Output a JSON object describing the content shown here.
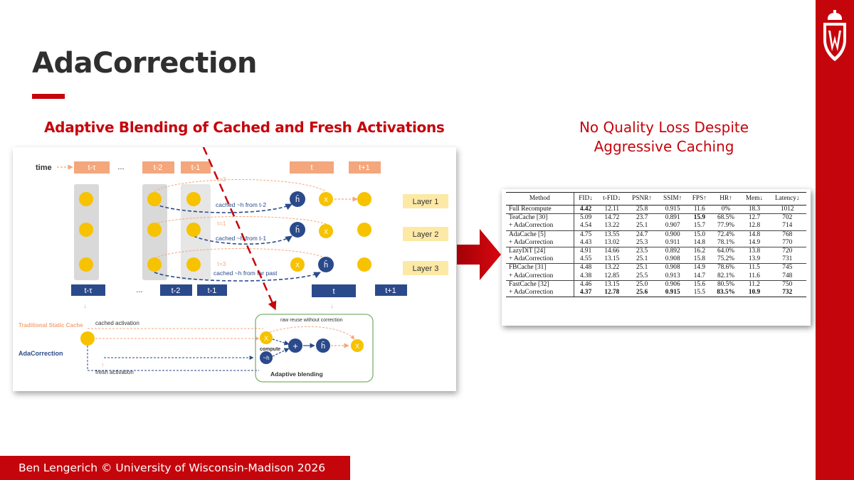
{
  "slide": {
    "title": "AdaCorrection",
    "subtitle": "Adaptive Blending of Cached and Fresh Activations",
    "tagline_line1": "No Quality Loss Despite",
    "tagline_line2": "Aggressive Caching",
    "footer": "Ben Lengerich © University of Wisconsin-Madison 2026"
  },
  "colors": {
    "brand_red": "#c5050c",
    "orange": "#f4a67c",
    "yellow": "#f7c200",
    "navy": "#2b4a8b"
  },
  "diagram": {
    "time_label": "time",
    "top_steps": [
      "t-τ",
      "...",
      "t-2",
      "t-1",
      "t",
      "t+1"
    ],
    "bottom_steps": [
      "t-τ",
      "...",
      "t-2",
      "t-1",
      "t",
      "t+1"
    ],
    "layers": [
      "Layer 1",
      "Layer 2",
      "Layer 3"
    ],
    "tau_labels": [
      "τ=2",
      "τ=1",
      "τ=3"
    ],
    "cache_labels": [
      "cached ~h from t-2",
      "cached ~h from t-1",
      "cached ~h from far past"
    ],
    "h_symbol": "ĥ",
    "x_symbol": "X",
    "traditional_label": "Traditional Static Cache",
    "adacorrection_label": "AdaCorrection",
    "cached_activation": "cached activation",
    "fresh_activation": "fresh activation",
    "raw_reuse": "raw reuse without correction",
    "compute": "compute",
    "compute_h": "~h",
    "plus": "+",
    "adaptive_blending": "Adaptive blending"
  },
  "table": {
    "headers": [
      "Method",
      "FID↓",
      "t-FID↓",
      "PSNR↑",
      "SSIM↑",
      "FPS↑",
      "HR↑",
      "Mem↓",
      "Latency↓"
    ],
    "rows": [
      [
        "Full Recompute",
        "4.42",
        "12.11",
        "25.8",
        "0.915",
        "11.6",
        "0%",
        "18.3",
        "1012"
      ],
      [
        "TeaCache [30]",
        "5.09",
        "14.72",
        "23.7",
        "0.891",
        "15.9",
        "68.5%",
        "12.7",
        "702"
      ],
      [
        "+ AdaCorrection",
        "4.54",
        "13.22",
        "25.1",
        "0.907",
        "15.7",
        "77.9%",
        "12.8",
        "714"
      ],
      [
        "AdaCache [5]",
        "4.75",
        "13.55",
        "24.7",
        "0.900",
        "15.0",
        "72.4%",
        "14.8",
        "768"
      ],
      [
        "+ AdaCorrection",
        "4.43",
        "13.02",
        "25.3",
        "0.911",
        "14.8",
        "78.1%",
        "14.9",
        "770"
      ],
      [
        "LazyDiT [24]",
        "4.91",
        "14.66",
        "23.5",
        "0.892",
        "16.2",
        "64.0%",
        "13.8",
        "720"
      ],
      [
        "+ AdaCorrection",
        "4.55",
        "13.15",
        "25.1",
        "0.908",
        "15.8",
        "75.2%",
        "13.9",
        "731"
      ],
      [
        "FBCache [31]",
        "4.48",
        "13.22",
        "25.1",
        "0.908",
        "14.9",
        "78.6%",
        "11.5",
        "745"
      ],
      [
        "+ AdaCorrection",
        "4.38",
        "12.85",
        "25.5",
        "0.913",
        "14.7",
        "82.1%",
        "11.6",
        "748"
      ],
      [
        "FastCache [32]",
        "4.46",
        "13.15",
        "25.0",
        "0.906",
        "15.6",
        "80.5%",
        "11.2",
        "750"
      ],
      [
        "+ AdaCorrection",
        "4.37",
        "12.78",
        "25.6",
        "0.915",
        "15.5",
        "83.5%",
        "10.9",
        "732"
      ]
    ],
    "bold_cells": [
      "0.1",
      "1.5",
      "10.1",
      "10.2",
      "10.3",
      "10.4",
      "10.6",
      "10.7",
      "10.8"
    ]
  }
}
